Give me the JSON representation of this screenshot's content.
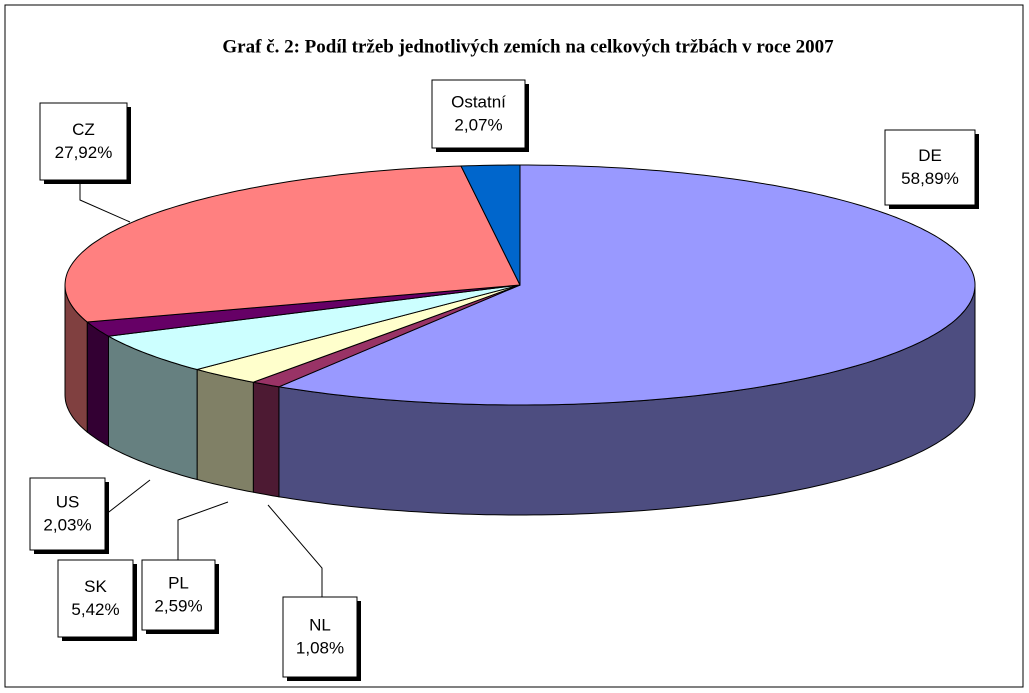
{
  "chart_data": {
    "type": "pie3d",
    "title": "Graf č. 2: Podíl tržeb jednotlivých zemích na celkových tržbách v roce 2007",
    "categories": [
      "DE",
      "NL",
      "PL",
      "SK",
      "US",
      "CZ",
      "Ostatní"
    ],
    "values": [
      58.89,
      1.08,
      2.59,
      5.42,
      2.03,
      27.92,
      2.07
    ],
    "value_labels": [
      "58,89%",
      "1,08%",
      "2,59%",
      "5,42%",
      "2,03%",
      "27,92%",
      "2,07%"
    ],
    "colors": [
      "#9999ff",
      "#993366",
      "#ffffcc",
      "#ccffff",
      "#660066",
      "#ff8080",
      "#0066cc"
    ]
  }
}
